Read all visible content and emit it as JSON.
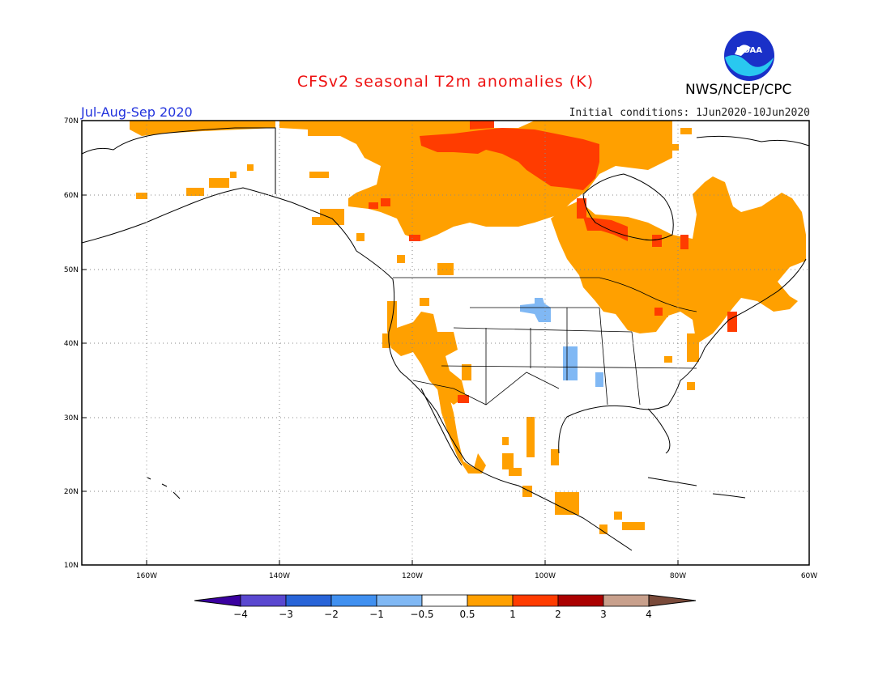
{
  "header": {
    "title": "CFSv2 seasonal T2m anomalies (K)",
    "season": "Jul-Aug-Sep 2020",
    "initial_conditions": "Initial conditions: 1Jun2020-10Jun2020",
    "agency": "NWS/NCEP/CPC",
    "logo_text": "NOAA",
    "logo_icon": "noaa-logo-icon"
  },
  "axes": {
    "lat_labels": [
      "70N",
      "60N",
      "50N",
      "40N",
      "30N",
      "20N",
      "10N"
    ],
    "lon_labels": [
      "160W",
      "140W",
      "120W",
      "100W",
      "80W",
      "60W"
    ]
  },
  "colorbar": {
    "labels": [
      "-4",
      "-3",
      "-2",
      "-1",
      "-0.5",
      "0.5",
      "1",
      "2",
      "3",
      "4"
    ],
    "colors": [
      "#3a00a0",
      "#5a48d0",
      "#2864d8",
      "#4090f0",
      "#80b8f4",
      "#ffffff",
      "#ffa000",
      "#ff3c00",
      "#aa0000",
      "#c8a08c",
      "#7a4a3a"
    ]
  },
  "anomaly_colors": {
    "warm_0_5_to_1": "#ffa000",
    "warm_1_to_2": "#ff3c00",
    "cool_-1_to_-0_5": "#80b8f4"
  }
}
